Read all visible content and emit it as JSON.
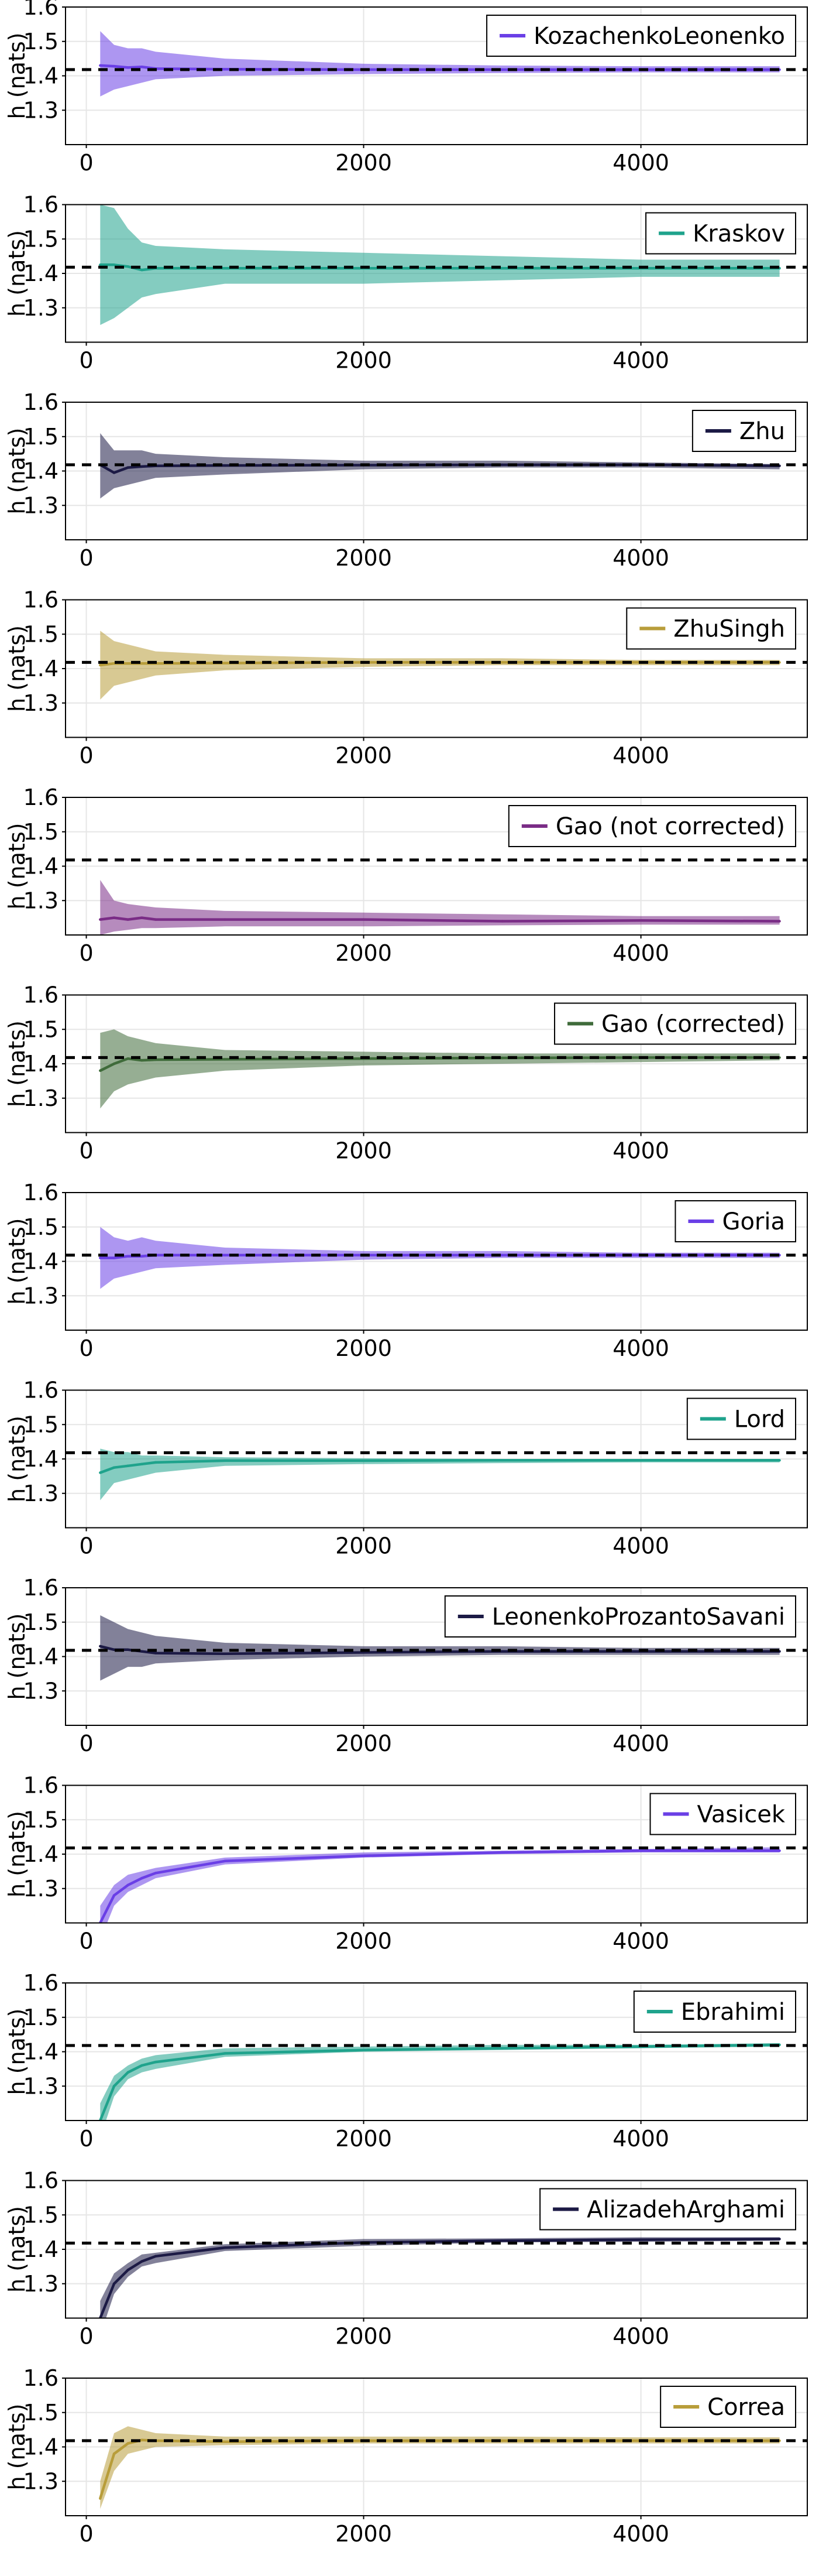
{
  "reference_line": {
    "y": 1.418,
    "color": "#000000",
    "style": "dashed"
  },
  "x_ticks": [
    0,
    2000,
    4000
  ],
  "y_ticks": [
    1.3,
    1.4,
    1.5,
    1.6
  ],
  "chart_data": [
    {
      "type": "line",
      "xlabel": "",
      "ylabel": "h (nats)",
      "xlim": [
        -150,
        5200
      ],
      "ylim": [
        1.2,
        1.6
      ],
      "grid": true,
      "legend_position": "top-right",
      "x": [
        100,
        200,
        300,
        400,
        500,
        1000,
        2000,
        3000,
        4000,
        5000
      ],
      "series": [
        {
          "name": "KozachenkoLeonenko",
          "color": "#6a3fe6",
          "values": [
            1.43,
            1.428,
            1.424,
            1.426,
            1.421,
            1.419,
            1.418,
            1.418,
            1.418,
            1.418
          ],
          "lower": [
            1.34,
            1.36,
            1.37,
            1.38,
            1.39,
            1.4,
            1.405,
            1.408,
            1.41,
            1.41
          ],
          "upper": [
            1.53,
            1.49,
            1.48,
            1.48,
            1.47,
            1.45,
            1.435,
            1.43,
            1.428,
            1.428
          ]
        }
      ]
    },
    {
      "type": "line",
      "xlabel": "",
      "ylabel": "h (nats)",
      "xlim": [
        -150,
        5200
      ],
      "ylim": [
        1.2,
        1.6
      ],
      "grid": true,
      "legend_position": "top-right",
      "x": [
        100,
        200,
        300,
        400,
        500,
        1000,
        2000,
        3000,
        4000,
        5000
      ],
      "series": [
        {
          "name": "Kraskov",
          "color": "#1fa38c",
          "values": [
            1.425,
            1.425,
            1.42,
            1.41,
            1.415,
            1.415,
            1.415,
            1.415,
            1.415,
            1.415
          ],
          "lower": [
            1.25,
            1.27,
            1.3,
            1.33,
            1.34,
            1.37,
            1.37,
            1.38,
            1.39,
            1.39
          ],
          "upper": [
            1.6,
            1.59,
            1.53,
            1.49,
            1.48,
            1.47,
            1.46,
            1.45,
            1.44,
            1.44
          ]
        }
      ]
    },
    {
      "type": "line",
      "xlabel": "",
      "ylabel": "h (nats)",
      "xlim": [
        -150,
        5200
      ],
      "ylim": [
        1.2,
        1.6
      ],
      "grid": true,
      "legend_position": "top-right",
      "x": [
        100,
        200,
        300,
        400,
        500,
        1000,
        2000,
        3000,
        4000,
        5000
      ],
      "series": [
        {
          "name": "Zhu",
          "color": "#1c1a45",
          "values": [
            1.418,
            1.395,
            1.41,
            1.413,
            1.415,
            1.416,
            1.417,
            1.418,
            1.418,
            1.415
          ],
          "lower": [
            1.32,
            1.35,
            1.36,
            1.37,
            1.38,
            1.39,
            1.405,
            1.41,
            1.41,
            1.405
          ],
          "upper": [
            1.51,
            1.46,
            1.46,
            1.46,
            1.45,
            1.44,
            1.43,
            1.43,
            1.425,
            1.42
          ]
        }
      ]
    },
    {
      "type": "line",
      "xlabel": "",
      "ylabel": "h (nats)",
      "xlim": [
        -150,
        5200
      ],
      "ylim": [
        1.2,
        1.6
      ],
      "grid": true,
      "legend_position": "top-right",
      "x": [
        100,
        200,
        300,
        400,
        500,
        1000,
        2000,
        3000,
        4000,
        5000
      ],
      "series": [
        {
          "name": "ZhuSingh",
          "color": "#b89d3a",
          "values": [
            1.41,
            1.415,
            1.415,
            1.415,
            1.415,
            1.416,
            1.418,
            1.418,
            1.418,
            1.418
          ],
          "lower": [
            1.31,
            1.35,
            1.36,
            1.37,
            1.38,
            1.395,
            1.405,
            1.41,
            1.41,
            1.41
          ],
          "upper": [
            1.51,
            1.48,
            1.47,
            1.46,
            1.45,
            1.44,
            1.43,
            1.43,
            1.425,
            1.425
          ]
        }
      ]
    },
    {
      "type": "line",
      "xlabel": "",
      "ylabel": "h (nats)",
      "xlim": [
        -150,
        5200
      ],
      "ylim": [
        1.2,
        1.6
      ],
      "grid": true,
      "legend_position": "top-right",
      "x": [
        100,
        200,
        300,
        400,
        500,
        1000,
        2000,
        3000,
        4000,
        5000
      ],
      "series": [
        {
          "name": "Gao (not corrected)",
          "color": "#7a2c86",
          "values": [
            1.245,
            1.25,
            1.245,
            1.25,
            1.245,
            1.245,
            1.245,
            1.24,
            1.242,
            1.24
          ],
          "lower": [
            1.2,
            1.21,
            1.215,
            1.22,
            1.22,
            1.225,
            1.225,
            1.228,
            1.23,
            1.23
          ],
          "upper": [
            1.36,
            1.3,
            1.29,
            1.285,
            1.28,
            1.27,
            1.265,
            1.26,
            1.255,
            1.255
          ]
        }
      ]
    },
    {
      "type": "line",
      "xlabel": "",
      "ylabel": "h (nats)",
      "xlim": [
        -150,
        5200
      ],
      "ylim": [
        1.2,
        1.6
      ],
      "grid": true,
      "legend_position": "top-right",
      "x": [
        100,
        200,
        300,
        400,
        500,
        1000,
        2000,
        3000,
        4000,
        5000
      ],
      "series": [
        {
          "name": "Gao (corrected)",
          "color": "#3f6b3a",
          "values": [
            1.38,
            1.4,
            1.415,
            1.41,
            1.412,
            1.413,
            1.415,
            1.417,
            1.418,
            1.418
          ],
          "lower": [
            1.27,
            1.32,
            1.34,
            1.35,
            1.36,
            1.38,
            1.395,
            1.4,
            1.405,
            1.41
          ],
          "upper": [
            1.49,
            1.5,
            1.48,
            1.47,
            1.46,
            1.44,
            1.435,
            1.43,
            1.43,
            1.43
          ]
        }
      ]
    },
    {
      "type": "line",
      "xlabel": "",
      "ylabel": "h (nats)",
      "xlim": [
        -150,
        5200
      ],
      "ylim": [
        1.2,
        1.6
      ],
      "grid": true,
      "legend_position": "top-right",
      "x": [
        100,
        200,
        300,
        400,
        500,
        1000,
        2000,
        3000,
        4000,
        5000
      ],
      "series": [
        {
          "name": "Goria",
          "color": "#6a3fe6",
          "values": [
            1.41,
            1.41,
            1.415,
            1.415,
            1.418,
            1.418,
            1.418,
            1.418,
            1.418,
            1.418
          ],
          "lower": [
            1.32,
            1.35,
            1.36,
            1.37,
            1.38,
            1.39,
            1.405,
            1.41,
            1.41,
            1.41
          ],
          "upper": [
            1.5,
            1.47,
            1.46,
            1.47,
            1.46,
            1.44,
            1.43,
            1.43,
            1.425,
            1.425
          ]
        }
      ]
    },
    {
      "type": "line",
      "xlabel": "",
      "ylabel": "h (nats)",
      "xlim": [
        -150,
        5200
      ],
      "ylim": [
        1.2,
        1.6
      ],
      "grid": true,
      "legend_position": "top-right",
      "x": [
        100,
        200,
        300,
        400,
        500,
        1000,
        2000,
        3000,
        4000,
        5000
      ],
      "series": [
        {
          "name": "Lord",
          "color": "#1fa38c",
          "values": [
            1.36,
            1.375,
            1.38,
            1.385,
            1.39,
            1.395,
            1.395,
            1.396,
            1.396,
            1.396
          ],
          "lower": [
            1.28,
            1.33,
            1.34,
            1.35,
            1.36,
            1.38,
            1.385,
            1.388,
            1.39,
            1.39
          ],
          "upper": [
            1.43,
            1.42,
            1.42,
            1.41,
            1.41,
            1.405,
            1.402,
            1.4,
            1.4,
            1.4
          ]
        }
      ]
    },
    {
      "type": "line",
      "xlabel": "",
      "ylabel": "h (nats)",
      "xlim": [
        -150,
        5200
      ],
      "ylim": [
        1.2,
        1.6
      ],
      "grid": true,
      "legend_position": "top-right",
      "x": [
        100,
        200,
        300,
        400,
        500,
        1000,
        2000,
        3000,
        4000,
        5000
      ],
      "series": [
        {
          "name": "LeonenkoProzantoSavani",
          "color": "#1c1a45",
          "values": [
            1.43,
            1.42,
            1.42,
            1.415,
            1.41,
            1.408,
            1.412,
            1.415,
            1.415,
            1.415
          ],
          "lower": [
            1.33,
            1.35,
            1.37,
            1.37,
            1.38,
            1.39,
            1.4,
            1.405,
            1.405,
            1.405
          ],
          "upper": [
            1.52,
            1.5,
            1.48,
            1.47,
            1.46,
            1.44,
            1.43,
            1.43,
            1.425,
            1.425
          ]
        }
      ]
    },
    {
      "type": "line",
      "xlabel": "",
      "ylabel": "h (nats)",
      "xlim": [
        -150,
        5200
      ],
      "ylim": [
        1.2,
        1.6
      ],
      "grid": true,
      "legend_position": "top-right",
      "x": [
        100,
        200,
        300,
        400,
        500,
        1000,
        2000,
        3000,
        4000,
        5000
      ],
      "series": [
        {
          "name": "Vasicek",
          "color": "#6a3fe6",
          "values": [
            1.2,
            1.28,
            1.31,
            1.33,
            1.345,
            1.38,
            1.395,
            1.405,
            1.41,
            1.41
          ],
          "lower": [
            1.15,
            1.25,
            1.29,
            1.31,
            1.33,
            1.37,
            1.39,
            1.4,
            1.405,
            1.405
          ],
          "upper": [
            1.25,
            1.31,
            1.34,
            1.35,
            1.36,
            1.39,
            1.405,
            1.41,
            1.415,
            1.42
          ]
        }
      ]
    },
    {
      "type": "line",
      "xlabel": "",
      "ylabel": "h (nats)",
      "xlim": [
        -150,
        5200
      ],
      "ylim": [
        1.2,
        1.6
      ],
      "grid": true,
      "legend_position": "top-right",
      "x": [
        100,
        200,
        300,
        400,
        500,
        1000,
        2000,
        3000,
        4000,
        5000
      ],
      "series": [
        {
          "name": "Ebrahimi",
          "color": "#1fa38c",
          "values": [
            1.2,
            1.3,
            1.34,
            1.36,
            1.37,
            1.395,
            1.405,
            1.41,
            1.415,
            1.42
          ],
          "lower": [
            1.15,
            1.27,
            1.32,
            1.34,
            1.35,
            1.385,
            1.4,
            1.405,
            1.41,
            1.415
          ],
          "upper": [
            1.25,
            1.33,
            1.36,
            1.38,
            1.39,
            1.41,
            1.415,
            1.42,
            1.42,
            1.425
          ]
        }
      ]
    },
    {
      "type": "line",
      "xlabel": "",
      "ylabel": "h (nats)",
      "xlim": [
        -150,
        5200
      ],
      "ylim": [
        1.2,
        1.6
      ],
      "grid": true,
      "legend_position": "top-right",
      "x": [
        100,
        200,
        300,
        400,
        500,
        1000,
        2000,
        3000,
        4000,
        5000
      ],
      "series": [
        {
          "name": "AlizadehArghami",
          "color": "#1c1a45",
          "values": [
            1.2,
            1.3,
            1.34,
            1.365,
            1.38,
            1.405,
            1.42,
            1.425,
            1.428,
            1.43
          ],
          "lower": [
            1.15,
            1.27,
            1.32,
            1.35,
            1.36,
            1.395,
            1.41,
            1.42,
            1.422,
            1.425
          ],
          "upper": [
            1.25,
            1.33,
            1.36,
            1.385,
            1.39,
            1.415,
            1.43,
            1.432,
            1.435,
            1.435
          ]
        }
      ]
    },
    {
      "type": "line",
      "xlabel": "",
      "ylabel": "h (nats)",
      "xlim": [
        -150,
        5200
      ],
      "ylim": [
        1.2,
        1.6
      ],
      "grid": true,
      "legend_position": "top-right",
      "x": [
        100,
        200,
        300,
        400,
        500,
        1000,
        2000,
        3000,
        4000,
        5000
      ],
      "series": [
        {
          "name": "Correa",
          "color": "#b89d3a",
          "values": [
            1.25,
            1.38,
            1.41,
            1.42,
            1.418,
            1.415,
            1.418,
            1.418,
            1.418,
            1.418
          ],
          "lower": [
            1.22,
            1.33,
            1.38,
            1.39,
            1.4,
            1.405,
            1.41,
            1.41,
            1.41,
            1.41
          ],
          "upper": [
            1.3,
            1.44,
            1.46,
            1.45,
            1.44,
            1.43,
            1.43,
            1.43,
            1.428,
            1.428
          ]
        }
      ]
    }
  ]
}
